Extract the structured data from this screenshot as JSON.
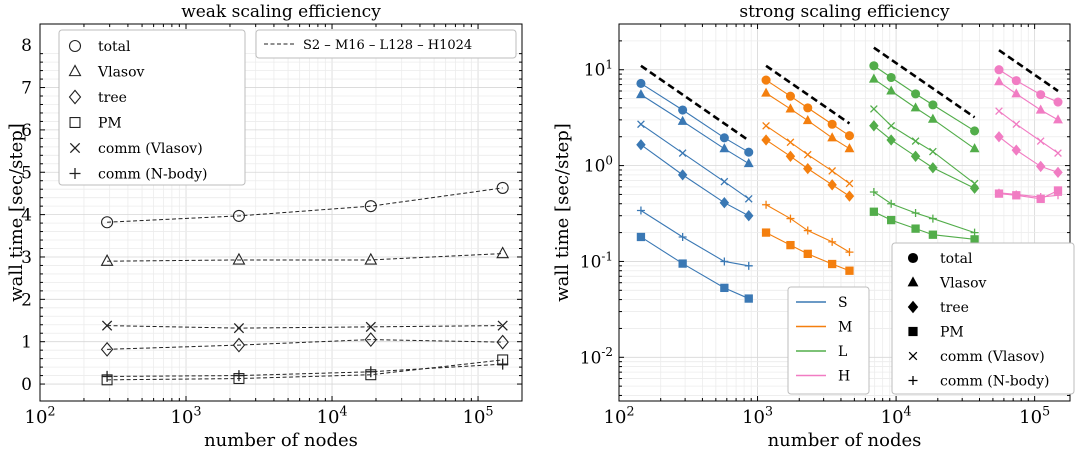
{
  "chart_data": [
    {
      "type": "line",
      "title": "weak scaling efficiency",
      "xlabel": "number of nodes",
      "ylabel": "wall time [sec/step]",
      "xscale": "log",
      "xlim": [
        100,
        200000
      ],
      "ylim": [
        -0.4,
        8.5
      ],
      "xticks": [
        {
          "value": 100,
          "base": "10",
          "exp": "2"
        },
        {
          "value": 1000,
          "base": "10",
          "exp": "3"
        },
        {
          "value": 10000,
          "base": "10",
          "exp": "4"
        },
        {
          "value": 100000,
          "base": "10",
          "exp": "5"
        }
      ],
      "yticks": [
        "0",
        "1",
        "2",
        "3",
        "4",
        "5",
        "6",
        "7",
        "8"
      ],
      "grid": true,
      "line_style": "dashed",
      "legend_markers": {
        "placement": "top-left",
        "entries": [
          {
            "marker": "circle",
            "label": "total"
          },
          {
            "marker": "triangle",
            "label": "Vlasov"
          },
          {
            "marker": "diamond",
            "label": "tree"
          },
          {
            "marker": "square",
            "label": "PM"
          },
          {
            "marker": "x",
            "label": "comm (Vlasov)"
          },
          {
            "marker": "plus",
            "label": "comm (N-body)"
          }
        ]
      },
      "legend_lines": {
        "placement": "top-right",
        "entries": [
          {
            "style": "dashed",
            "label": "S2 – M16 – L128 – H1024"
          }
        ]
      },
      "x": [
        288,
        2304,
        18432,
        147456
      ],
      "series": [
        {
          "marker": "circle",
          "values": [
            3.82,
            3.97,
            4.2,
            4.63
          ]
        },
        {
          "marker": "triangle",
          "values": [
            2.9,
            2.93,
            2.93,
            3.08
          ]
        },
        {
          "marker": "diamond",
          "values": [
            0.82,
            0.92,
            1.05,
            0.99
          ]
        },
        {
          "marker": "square",
          "values": [
            0.1,
            0.13,
            0.22,
            0.57
          ]
        },
        {
          "marker": "x",
          "values": [
            1.38,
            1.32,
            1.35,
            1.38
          ]
        },
        {
          "marker": "plus",
          "values": [
            0.18,
            0.2,
            0.29,
            0.47
          ]
        }
      ]
    },
    {
      "type": "line",
      "title": "strong scaling efficiency",
      "xlabel": "number of nodes",
      "ylabel": "wall time [sec/step]",
      "xscale": "log",
      "yscale": "log",
      "xlim": [
        100,
        180000
      ],
      "ylim": [
        0.0035,
        30
      ],
      "xticks": [
        {
          "value": 100,
          "base": "10",
          "exp": "2"
        },
        {
          "value": 1000,
          "base": "10",
          "exp": "3"
        },
        {
          "value": 10000,
          "base": "10",
          "exp": "4"
        },
        {
          "value": 100000,
          "base": "10",
          "exp": "5"
        }
      ],
      "yticks": [
        {
          "value": 0.01,
          "base": "10",
          "exp": "-2"
        },
        {
          "value": 0.1,
          "base": "10",
          "exp": "-1"
        },
        {
          "value": 1,
          "base": "10",
          "exp": "0"
        },
        {
          "value": 10,
          "base": "10",
          "exp": "1"
        }
      ],
      "grid": true,
      "legend_colors": {
        "placement": "bottom-center",
        "entries": [
          {
            "label": "S",
            "color": "#3a78b4"
          },
          {
            "label": "M",
            "color": "#f47f0e"
          },
          {
            "label": "L",
            "color": "#52ad4a"
          },
          {
            "label": "H",
            "color": "#f17cc3"
          }
        ]
      },
      "legend_markers": {
        "placement": "bottom-right",
        "entries": [
          {
            "marker": "circle",
            "label": "total"
          },
          {
            "marker": "triangle",
            "label": "Vlasov"
          },
          {
            "marker": "diamond",
            "label": "tree"
          },
          {
            "marker": "square",
            "label": "PM"
          },
          {
            "marker": "x",
            "label": "comm (Vlasov)"
          },
          {
            "marker": "plus",
            "label": "comm (N-body)"
          }
        ]
      },
      "groups": [
        {
          "color": "#3a78b4",
          "x": [
            144,
            288,
            576,
            864
          ],
          "ideal": {
            "x": [
              144,
              864
            ],
            "y": [
              11,
              1.83
            ]
          },
          "series": [
            {
              "marker": "circle",
              "values": [
                7.2,
                3.8,
                1.95,
                1.38
              ]
            },
            {
              "marker": "triangle",
              "values": [
                5.5,
                2.9,
                1.5,
                1.05
              ]
            },
            {
              "marker": "x",
              "values": [
                2.7,
                1.35,
                0.68,
                0.45
              ]
            },
            {
              "marker": "diamond",
              "values": [
                1.65,
                0.8,
                0.41,
                0.3
              ]
            },
            {
              "marker": "plus",
              "values": [
                0.34,
                0.18,
                0.1,
                0.09
              ]
            },
            {
              "marker": "square",
              "values": [
                0.18,
                0.095,
                0.053,
                0.041
              ]
            }
          ]
        },
        {
          "color": "#f47f0e",
          "x": [
            1152,
            1728,
            2304,
            3456,
            4608
          ],
          "ideal": {
            "x": [
              1152,
              4608
            ],
            "y": [
              11,
              2.75
            ]
          },
          "series": [
            {
              "marker": "circle",
              "values": [
                7.8,
                5.3,
                4.0,
                2.7,
                2.05
              ]
            },
            {
              "marker": "triangle",
              "values": [
                5.7,
                3.9,
                2.95,
                1.95,
                1.5
              ]
            },
            {
              "marker": "x",
              "values": [
                2.6,
                1.75,
                1.3,
                0.88,
                0.65
              ]
            },
            {
              "marker": "diamond",
              "values": [
                1.85,
                1.25,
                0.93,
                0.63,
                0.48
              ]
            },
            {
              "marker": "plus",
              "values": [
                0.39,
                0.28,
                0.21,
                0.16,
                0.125
              ]
            },
            {
              "marker": "square",
              "values": [
                0.2,
                0.148,
                0.12,
                0.094,
                0.08
              ]
            }
          ]
        },
        {
          "color": "#52ad4a",
          "x": [
            6912,
            9216,
            13824,
            18432,
            36864
          ],
          "ideal": {
            "x": [
              6912,
              36864
            ],
            "y": [
              17,
              3.19
            ]
          },
          "series": [
            {
              "marker": "circle",
              "values": [
                11,
                8.3,
                5.6,
                4.3,
                2.3
              ]
            },
            {
              "marker": "triangle",
              "values": [
                8.0,
                6.0,
                4.0,
                3.05,
                1.5
              ]
            },
            {
              "marker": "x",
              "values": [
                3.9,
                2.6,
                1.8,
                1.4,
                0.65
              ]
            },
            {
              "marker": "diamond",
              "values": [
                2.6,
                1.85,
                1.25,
                0.95,
                0.58
              ]
            },
            {
              "marker": "plus",
              "values": [
                0.53,
                0.4,
                0.32,
                0.28,
                0.2
              ]
            },
            {
              "marker": "square",
              "values": [
                0.33,
                0.27,
                0.22,
                0.19,
                0.17
              ]
            }
          ]
        },
        {
          "color": "#f17cc3",
          "x": [
            55296,
            73728,
            110592,
            147456
          ],
          "ideal": {
            "x": [
              55296,
              147456
            ],
            "y": [
              16,
              6.0
            ]
          },
          "series": [
            {
              "marker": "circle",
              "values": [
                10,
                7.7,
                5.5,
                4.6
              ]
            },
            {
              "marker": "triangle",
              "values": [
                7.5,
                5.6,
                3.8,
                3.0
              ]
            },
            {
              "marker": "x",
              "values": [
                3.7,
                2.7,
                1.8,
                1.35
              ]
            },
            {
              "marker": "diamond",
              "values": [
                2.0,
                1.45,
                0.98,
                0.85
              ]
            },
            {
              "marker": "plus",
              "values": [
                0.52,
                0.5,
                0.47,
                0.49
              ]
            },
            {
              "marker": "square",
              "values": [
                0.51,
                0.49,
                0.45,
                0.55
              ]
            }
          ]
        }
      ]
    }
  ]
}
